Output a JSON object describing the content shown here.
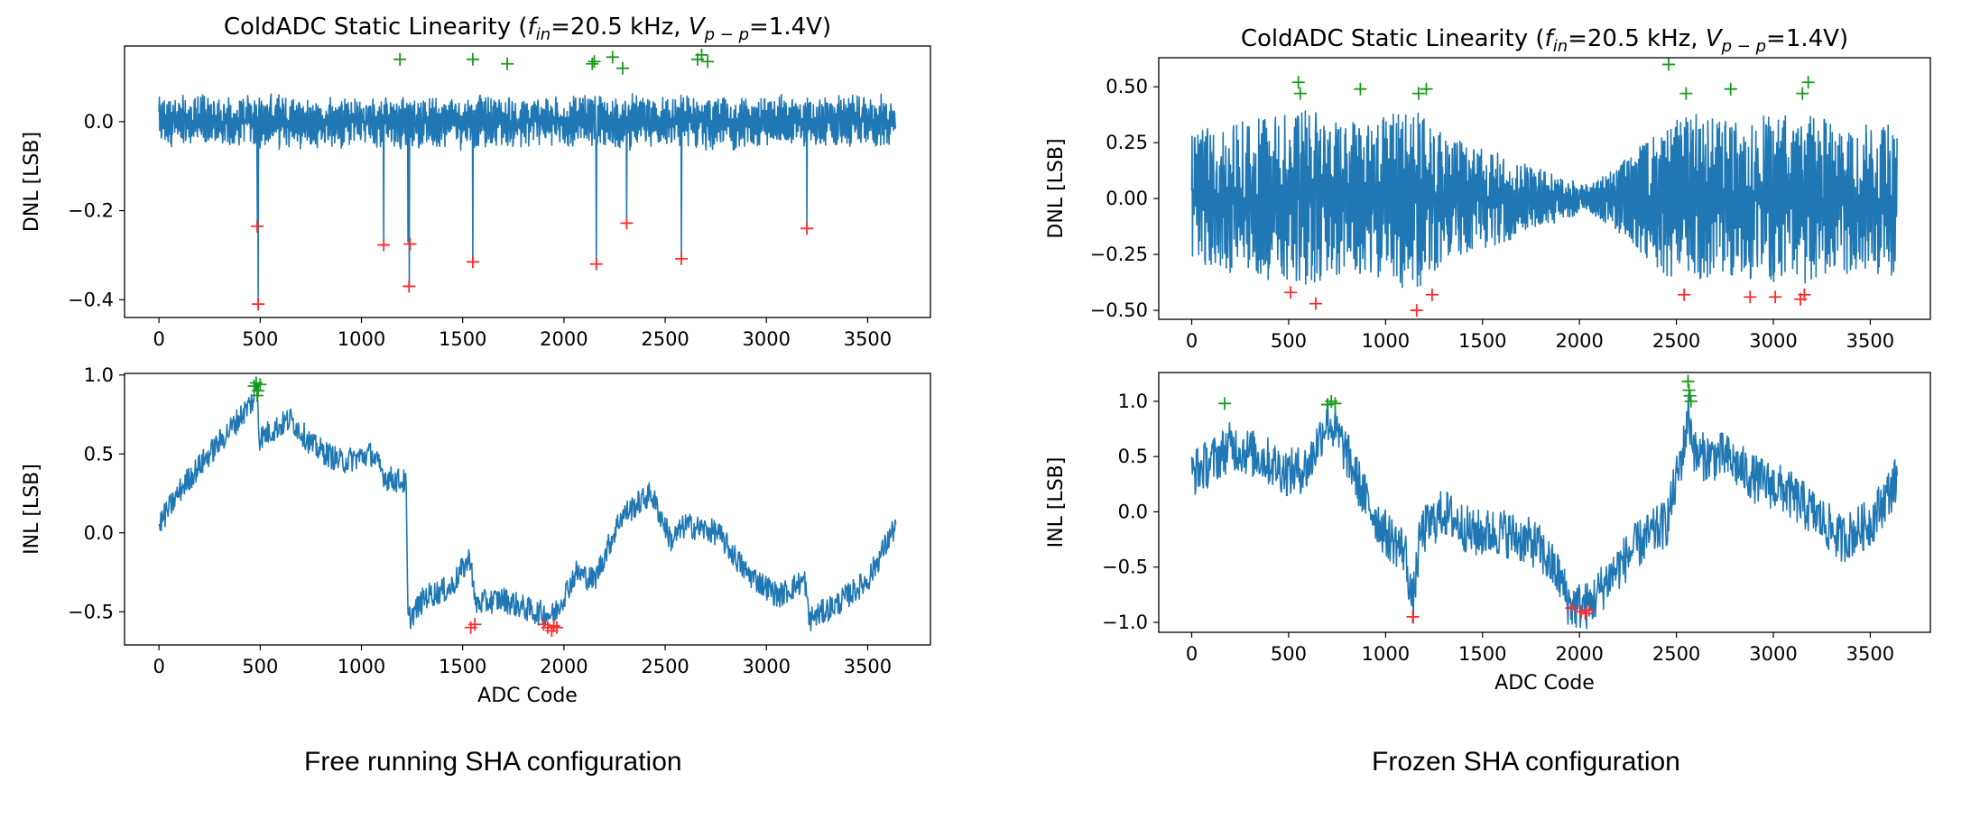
{
  "chart_data": [
    {
      "type": "line",
      "panel": "left-top",
      "title": "ColdADC Static Linearity (f_in=20.5 kHz, V_p-p=1.4V)",
      "title_parts": {
        "main": "ColdADC Static Linearity (",
        "f": "f",
        "f_sub": "in",
        "fval": "=20.5 kHz, ",
        "v": "V",
        "v_sub": "p − p",
        "vval": "=1.4V)"
      },
      "ylabel": "DNL [LSB]",
      "xlim": [
        -170,
        3810
      ],
      "ylim": [
        -0.44,
        0.17
      ],
      "xticks": [
        0,
        500,
        1000,
        1500,
        2000,
        2500,
        3000,
        3500
      ],
      "yticks": [
        -0.4,
        -0.2,
        0.0
      ],
      "ytick_labels": [
        "−0.4",
        "−0.2",
        "0.0"
      ],
      "series_color": "#1f77b4",
      "n_codes": 3640,
      "noise_amp": 0.065,
      "noise_min": 0.04,
      "spikes": [
        [
          490,
          -0.4
        ],
        [
          485,
          -0.23
        ],
        [
          1110,
          -0.27
        ],
        [
          1235,
          -0.37
        ],
        [
          1230,
          -0.27
        ],
        [
          1550,
          -0.31
        ],
        [
          2160,
          -0.32
        ],
        [
          2310,
          -0.22
        ],
        [
          2580,
          -0.3
        ],
        [
          3200,
          -0.24
        ]
      ],
      "max_markers": [
        [
          1190,
          0.14
        ],
        [
          1550,
          0.14
        ],
        [
          1720,
          0.13
        ],
        [
          2140,
          0.13
        ],
        [
          2150,
          0.135
        ],
        [
          2240,
          0.145
        ],
        [
          2290,
          0.12
        ],
        [
          2660,
          0.14
        ],
        [
          2680,
          0.15
        ],
        [
          2710,
          0.135
        ]
      ],
      "min_markers": [
        [
          490,
          -0.41
        ],
        [
          485,
          -0.235
        ],
        [
          1110,
          -0.277
        ],
        [
          1235,
          -0.37
        ],
        [
          1240,
          -0.275
        ],
        [
          1550,
          -0.315
        ],
        [
          2160,
          -0.32
        ],
        [
          2310,
          -0.228
        ],
        [
          2580,
          -0.308
        ],
        [
          3200,
          -0.24
        ]
      ]
    },
    {
      "type": "line",
      "panel": "left-bottom",
      "ylabel": "INL [LSB]",
      "xlabel": "ADC Code",
      "xlim": [
        -170,
        3810
      ],
      "ylim": [
        -0.71,
        1.01
      ],
      "xticks": [
        0,
        500,
        1000,
        1500,
        2000,
        2500,
        3000,
        3500
      ],
      "yticks": [
        -0.5,
        0.0,
        0.5,
        1.0
      ],
      "ytick_labels": [
        "−0.5",
        "0.0",
        "0.5",
        "1.0"
      ],
      "series_color": "#1f77b4",
      "noise": 0.08,
      "points": [
        [
          0,
          0.05
        ],
        [
          120,
          0.3
        ],
        [
          250,
          0.5
        ],
        [
          380,
          0.7
        ],
        [
          470,
          0.85
        ],
        [
          485,
          0.95
        ],
        [
          495,
          0.6
        ],
        [
          560,
          0.65
        ],
        [
          650,
          0.72
        ],
        [
          760,
          0.55
        ],
        [
          900,
          0.45
        ],
        [
          1050,
          0.5
        ],
        [
          1120,
          0.35
        ],
        [
          1220,
          0.32
        ],
        [
          1230,
          -0.55
        ],
        [
          1320,
          -0.4
        ],
        [
          1440,
          -0.35
        ],
        [
          1540,
          -0.15
        ],
        [
          1560,
          -0.45
        ],
        [
          1700,
          -0.42
        ],
        [
          1850,
          -0.5
        ],
        [
          1950,
          -0.52
        ],
        [
          2060,
          -0.25
        ],
        [
          2150,
          -0.3
        ],
        [
          2280,
          0.1
        ],
        [
          2430,
          0.25
        ],
        [
          2530,
          -0.05
        ],
        [
          2600,
          0.05
        ],
        [
          2760,
          0.0
        ],
        [
          2900,
          -0.25
        ],
        [
          3060,
          -0.4
        ],
        [
          3190,
          -0.3
        ],
        [
          3210,
          -0.55
        ],
        [
          3350,
          -0.45
        ],
        [
          3500,
          -0.3
        ],
        [
          3600,
          -0.05
        ],
        [
          3640,
          0.05
        ]
      ],
      "max_markers": [
        [
          470,
          0.93
        ],
        [
          480,
          0.95
        ],
        [
          490,
          0.9
        ],
        [
          485,
          0.87
        ],
        [
          500,
          0.94
        ]
      ],
      "min_markers": [
        [
          1540,
          -0.6
        ],
        [
          1560,
          -0.58
        ],
        [
          1900,
          -0.58
        ],
        [
          1920,
          -0.6
        ],
        [
          1940,
          -0.62
        ],
        [
          1950,
          -0.59
        ],
        [
          1965,
          -0.6
        ]
      ]
    },
    {
      "type": "line",
      "panel": "right-top",
      "title": "ColdADC Static Linearity (f_in=20.5 kHz, V_p-p=1.4V)",
      "title_parts": {
        "main": "ColdADC Static Linearity (",
        "f": "f",
        "f_sub": "in",
        "fval": "=20.5 kHz, ",
        "v": "V",
        "v_sub": "p − p",
        "vval": "=1.4V)"
      },
      "ylabel": "DNL [LSB]",
      "xlim": [
        -170,
        3810
      ],
      "ylim": [
        -0.54,
        0.63
      ],
      "xticks": [
        0,
        500,
        1000,
        1500,
        2000,
        2500,
        3000,
        3500
      ],
      "yticks": [
        -0.5,
        -0.25,
        0.0,
        0.25,
        0.5
      ],
      "ytick_labels": [
        "−0.50",
        "−0.25",
        "0.00",
        "0.25",
        "0.50"
      ],
      "series_color": "#1f77b4",
      "n_codes": 3640,
      "envelope": [
        [
          0,
          0.3
        ],
        [
          300,
          0.35
        ],
        [
          600,
          0.4
        ],
        [
          900,
          0.33
        ],
        [
          1150,
          0.42
        ],
        [
          1300,
          0.28
        ],
        [
          1600,
          0.2
        ],
        [
          1900,
          0.1
        ],
        [
          2050,
          0.06
        ],
        [
          2200,
          0.15
        ],
        [
          2450,
          0.35
        ],
        [
          2600,
          0.38
        ],
        [
          2800,
          0.35
        ],
        [
          3100,
          0.4
        ],
        [
          3400,
          0.33
        ],
        [
          3640,
          0.35
        ]
      ],
      "max_markers": [
        [
          550,
          0.52
        ],
        [
          560,
          0.47
        ],
        [
          870,
          0.49
        ],
        [
          1170,
          0.47
        ],
        [
          1210,
          0.49
        ],
        [
          2460,
          0.6
        ],
        [
          2550,
          0.47
        ],
        [
          2780,
          0.49
        ],
        [
          3150,
          0.47
        ],
        [
          3180,
          0.52
        ]
      ],
      "min_markers": [
        [
          510,
          -0.42
        ],
        [
          640,
          -0.47
        ],
        [
          1160,
          -0.5
        ],
        [
          1240,
          -0.43
        ],
        [
          2540,
          -0.43
        ],
        [
          2880,
          -0.44
        ],
        [
          3010,
          -0.44
        ],
        [
          3140,
          -0.45
        ],
        [
          3160,
          -0.43
        ]
      ]
    },
    {
      "type": "line",
      "panel": "right-bottom",
      "ylabel": "INL [LSB]",
      "xlabel": "ADC Code",
      "xlim": [
        -170,
        3810
      ],
      "ylim": [
        -1.09,
        1.26
      ],
      "xticks": [
        0,
        500,
        1000,
        1500,
        2000,
        2500,
        3000,
        3500
      ],
      "yticks": [
        -1.0,
        -0.5,
        0.0,
        0.5,
        1.0
      ],
      "ytick_labels": [
        "−1.0",
        "−0.5",
        "0.0",
        "0.5",
        "1.0"
      ],
      "series_color": "#1f77b4",
      "noise": 0.22,
      "points": [
        [
          0,
          0.35
        ],
        [
          100,
          0.45
        ],
        [
          200,
          0.6
        ],
        [
          350,
          0.5
        ],
        [
          500,
          0.35
        ],
        [
          600,
          0.4
        ],
        [
          700,
          0.85
        ],
        [
          780,
          0.6
        ],
        [
          900,
          0.1
        ],
        [
          1000,
          -0.2
        ],
        [
          1100,
          -0.35
        ],
        [
          1140,
          -0.85
        ],
        [
          1180,
          -0.2
        ],
        [
          1300,
          0.0
        ],
        [
          1450,
          -0.2
        ],
        [
          1600,
          -0.18
        ],
        [
          1780,
          -0.3
        ],
        [
          1900,
          -0.6
        ],
        [
          1950,
          -0.85
        ],
        [
          2050,
          -0.85
        ],
        [
          2150,
          -0.6
        ],
        [
          2300,
          -0.3
        ],
        [
          2450,
          -0.1
        ],
        [
          2540,
          0.6
        ],
        [
          2560,
          0.9
        ],
        [
          2600,
          0.5
        ],
        [
          2750,
          0.5
        ],
        [
          2900,
          0.3
        ],
        [
          3050,
          0.2
        ],
        [
          3200,
          0.0
        ],
        [
          3350,
          -0.25
        ],
        [
          3500,
          -0.1
        ],
        [
          3640,
          0.3
        ]
      ],
      "max_markers": [
        [
          170,
          0.98
        ],
        [
          700,
          0.97
        ],
        [
          720,
          1.0
        ],
        [
          740,
          0.98
        ],
        [
          2560,
          1.18
        ],
        [
          2570,
          1.05
        ],
        [
          2565,
          1.1
        ],
        [
          2575,
          1.0
        ]
      ],
      "min_markers": [
        [
          1140,
          -0.95
        ],
        [
          1960,
          -0.87
        ],
        [
          2010,
          -0.9
        ],
        [
          2030,
          -0.92
        ],
        [
          2050,
          -0.89
        ]
      ]
    }
  ],
  "captions": {
    "left": "Free running SHA configuration",
    "right": "Frozen SHA configuration"
  }
}
